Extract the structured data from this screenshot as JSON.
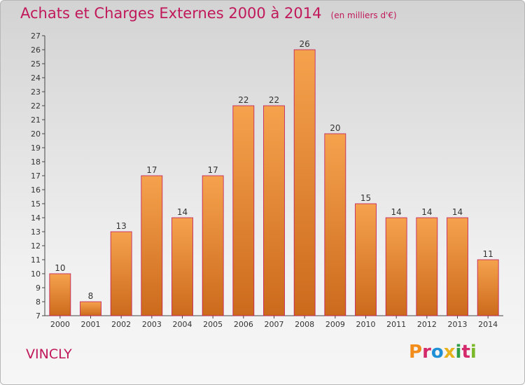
{
  "header": {
    "title": "Achats et Charges Externes 2000 à 2014",
    "unit": "(en milliers d'€)"
  },
  "footer": {
    "city": "VINCLY",
    "logo": "Proxiti",
    "logo_colors": [
      "#f28c1b",
      "#d42a6b",
      "#1f8fd6",
      "#e8b21c",
      "#2f9e44",
      "#d42a6b",
      "#7bb82a"
    ]
  },
  "colors": {
    "title": "#c0185a",
    "bar_top": "#f5a24d",
    "bar_bottom": "#cc6a1c",
    "bar_stroke": "#c0185a"
  },
  "chart_data": {
    "type": "bar",
    "title": "Achats et Charges Externes 2000 à 2014",
    "xlabel": "",
    "ylabel": "",
    "categories": [
      "2000",
      "2001",
      "2002",
      "2003",
      "2004",
      "2005",
      "2006",
      "2007",
      "2008",
      "2009",
      "2010",
      "2011",
      "2012",
      "2013",
      "2014"
    ],
    "values": [
      10,
      8,
      13,
      17,
      14,
      17,
      22,
      22,
      26,
      20,
      15,
      14,
      14,
      14,
      11
    ],
    "ylim": [
      7,
      27
    ],
    "yticks": [
      "7",
      "8",
      "9",
      "10",
      "11",
      "12",
      "13",
      "14",
      "15",
      "16",
      "17",
      "18",
      "19",
      "20",
      "21",
      "22",
      "23",
      "24",
      "25",
      "26",
      "27"
    ],
    "grid": false,
    "legend": "none"
  }
}
